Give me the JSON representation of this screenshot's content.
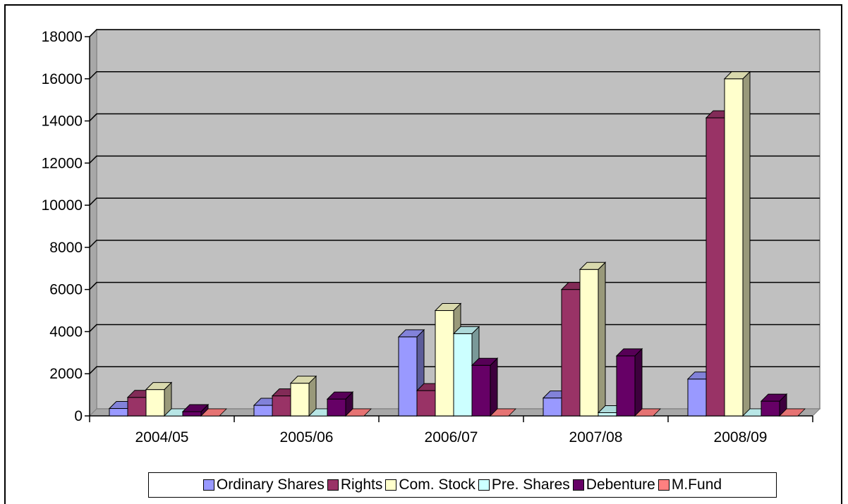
{
  "chart_data": {
    "type": "bar",
    "categories": [
      "2004/05",
      "2005/06",
      "2006/07",
      "2007/08",
      "2008/09"
    ],
    "series": [
      {
        "name": "Ordinary Shares",
        "color": "#9999FF",
        "values": [
          350,
          500,
          3750,
          850,
          1750
        ]
      },
      {
        "name": "Rights",
        "color": "#993366",
        "values": [
          880,
          950,
          1200,
          6000,
          14150
        ]
      },
      {
        "name": "Com. Stock",
        "color": "#FFFFCC",
        "values": [
          1250,
          1550,
          5000,
          6950,
          16000
        ]
      },
      {
        "name": "Pre. Shares",
        "color": "#CCFFFF",
        "values": [
          0,
          0,
          3900,
          150,
          0
        ]
      },
      {
        "name": "Debenture",
        "color": "#660066",
        "values": [
          200,
          800,
          2400,
          2850,
          700
        ]
      },
      {
        "name": "M.Fund",
        "color": "#FF8080",
        "values": [
          0,
          0,
          0,
          0,
          0
        ]
      }
    ],
    "yticks": [
      0,
      2000,
      4000,
      6000,
      8000,
      10000,
      12000,
      14000,
      16000,
      18000
    ],
    "ylim": [
      0,
      18000
    ],
    "grid": true,
    "legend_position": "bottom",
    "plot_background": "#C0C0C0",
    "projection": "3d-clustered-column"
  }
}
